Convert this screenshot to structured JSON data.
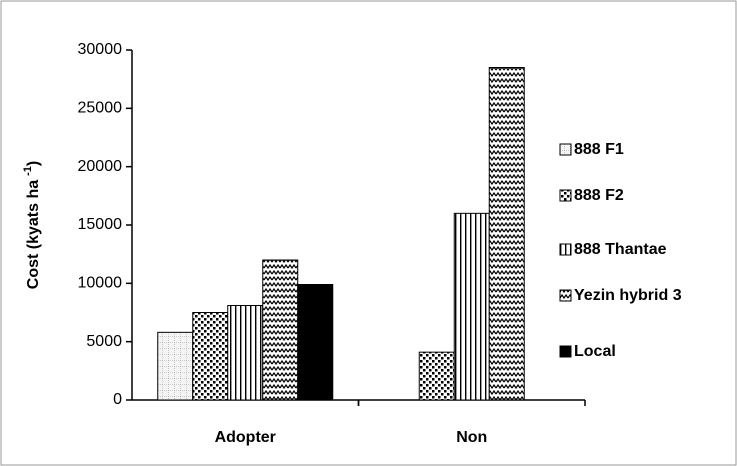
{
  "chart_data": {
    "type": "bar",
    "y_label": {
      "text": "Cost (kyats ha",
      "superscript": "-1",
      "suffix": ")"
    },
    "categories": [
      "Adopter",
      "Non"
    ],
    "series": [
      {
        "name": "888 F1",
        "color": "#ffffff",
        "pattern": "grid",
        "values": [
          5800,
          null
        ]
      },
      {
        "name": "888 F2",
        "color": "#ffffff",
        "pattern": "dots",
        "values": [
          7500,
          4100
        ]
      },
      {
        "name": "888 Thantae",
        "color": "#ffffff",
        "pattern": "vstripes",
        "values": [
          8100,
          16000
        ]
      },
      {
        "name": "Yezin hybrid 3",
        "color": "#ffffff",
        "pattern": "zigzag",
        "values": [
          12000,
          28500
        ]
      },
      {
        "name": "Local",
        "color": "#000000",
        "pattern": "solid",
        "values": [
          9900,
          null
        ]
      }
    ],
    "ylim": [
      0,
      30000
    ],
    "yticks": [
      0,
      5000,
      10000,
      15000,
      20000,
      25000,
      30000
    ],
    "legend": "right",
    "grid": false
  }
}
